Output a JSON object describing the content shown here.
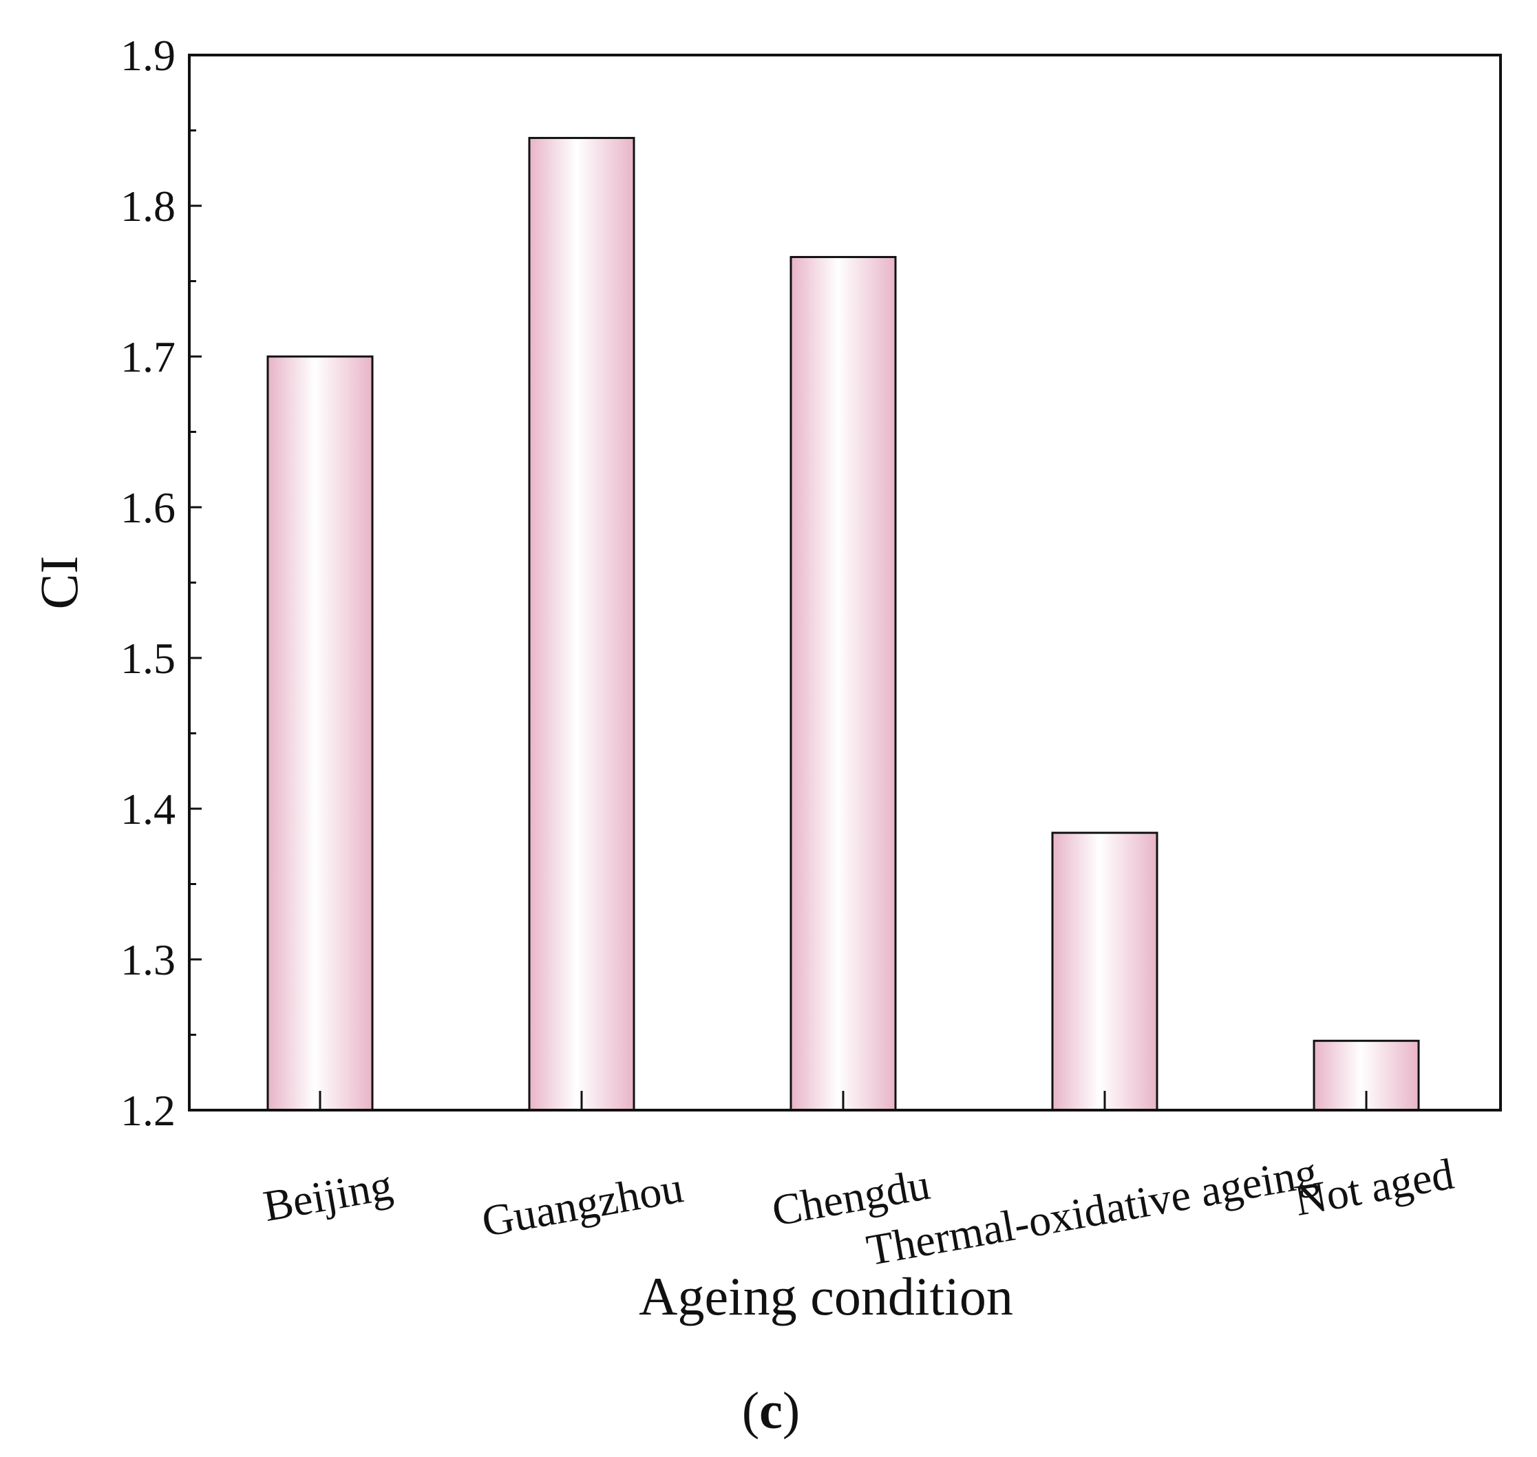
{
  "chart_data": {
    "type": "bar",
    "title": "",
    "xlabel": "Ageing condition",
    "ylabel": "CI",
    "categories": [
      "Beijing",
      "Guangzhou",
      "Chengdu",
      "Thermal-oxidative ageing",
      "Not aged"
    ],
    "values": [
      1.7,
      1.845,
      1.766,
      1.384,
      1.246
    ],
    "ylim": [
      1.2,
      1.9
    ],
    "yticks": [
      "1.2",
      "1.3",
      "1.4",
      "1.5",
      "1.6",
      "1.7",
      "1.8",
      "1.9"
    ],
    "grid": false,
    "legend": "none",
    "bar_colors": {
      "edge": "#e8b4c8",
      "center": "#ffffff",
      "stroke": "#111111"
    }
  },
  "caption": {
    "open": "(",
    "letter": "c",
    "close": ")"
  }
}
